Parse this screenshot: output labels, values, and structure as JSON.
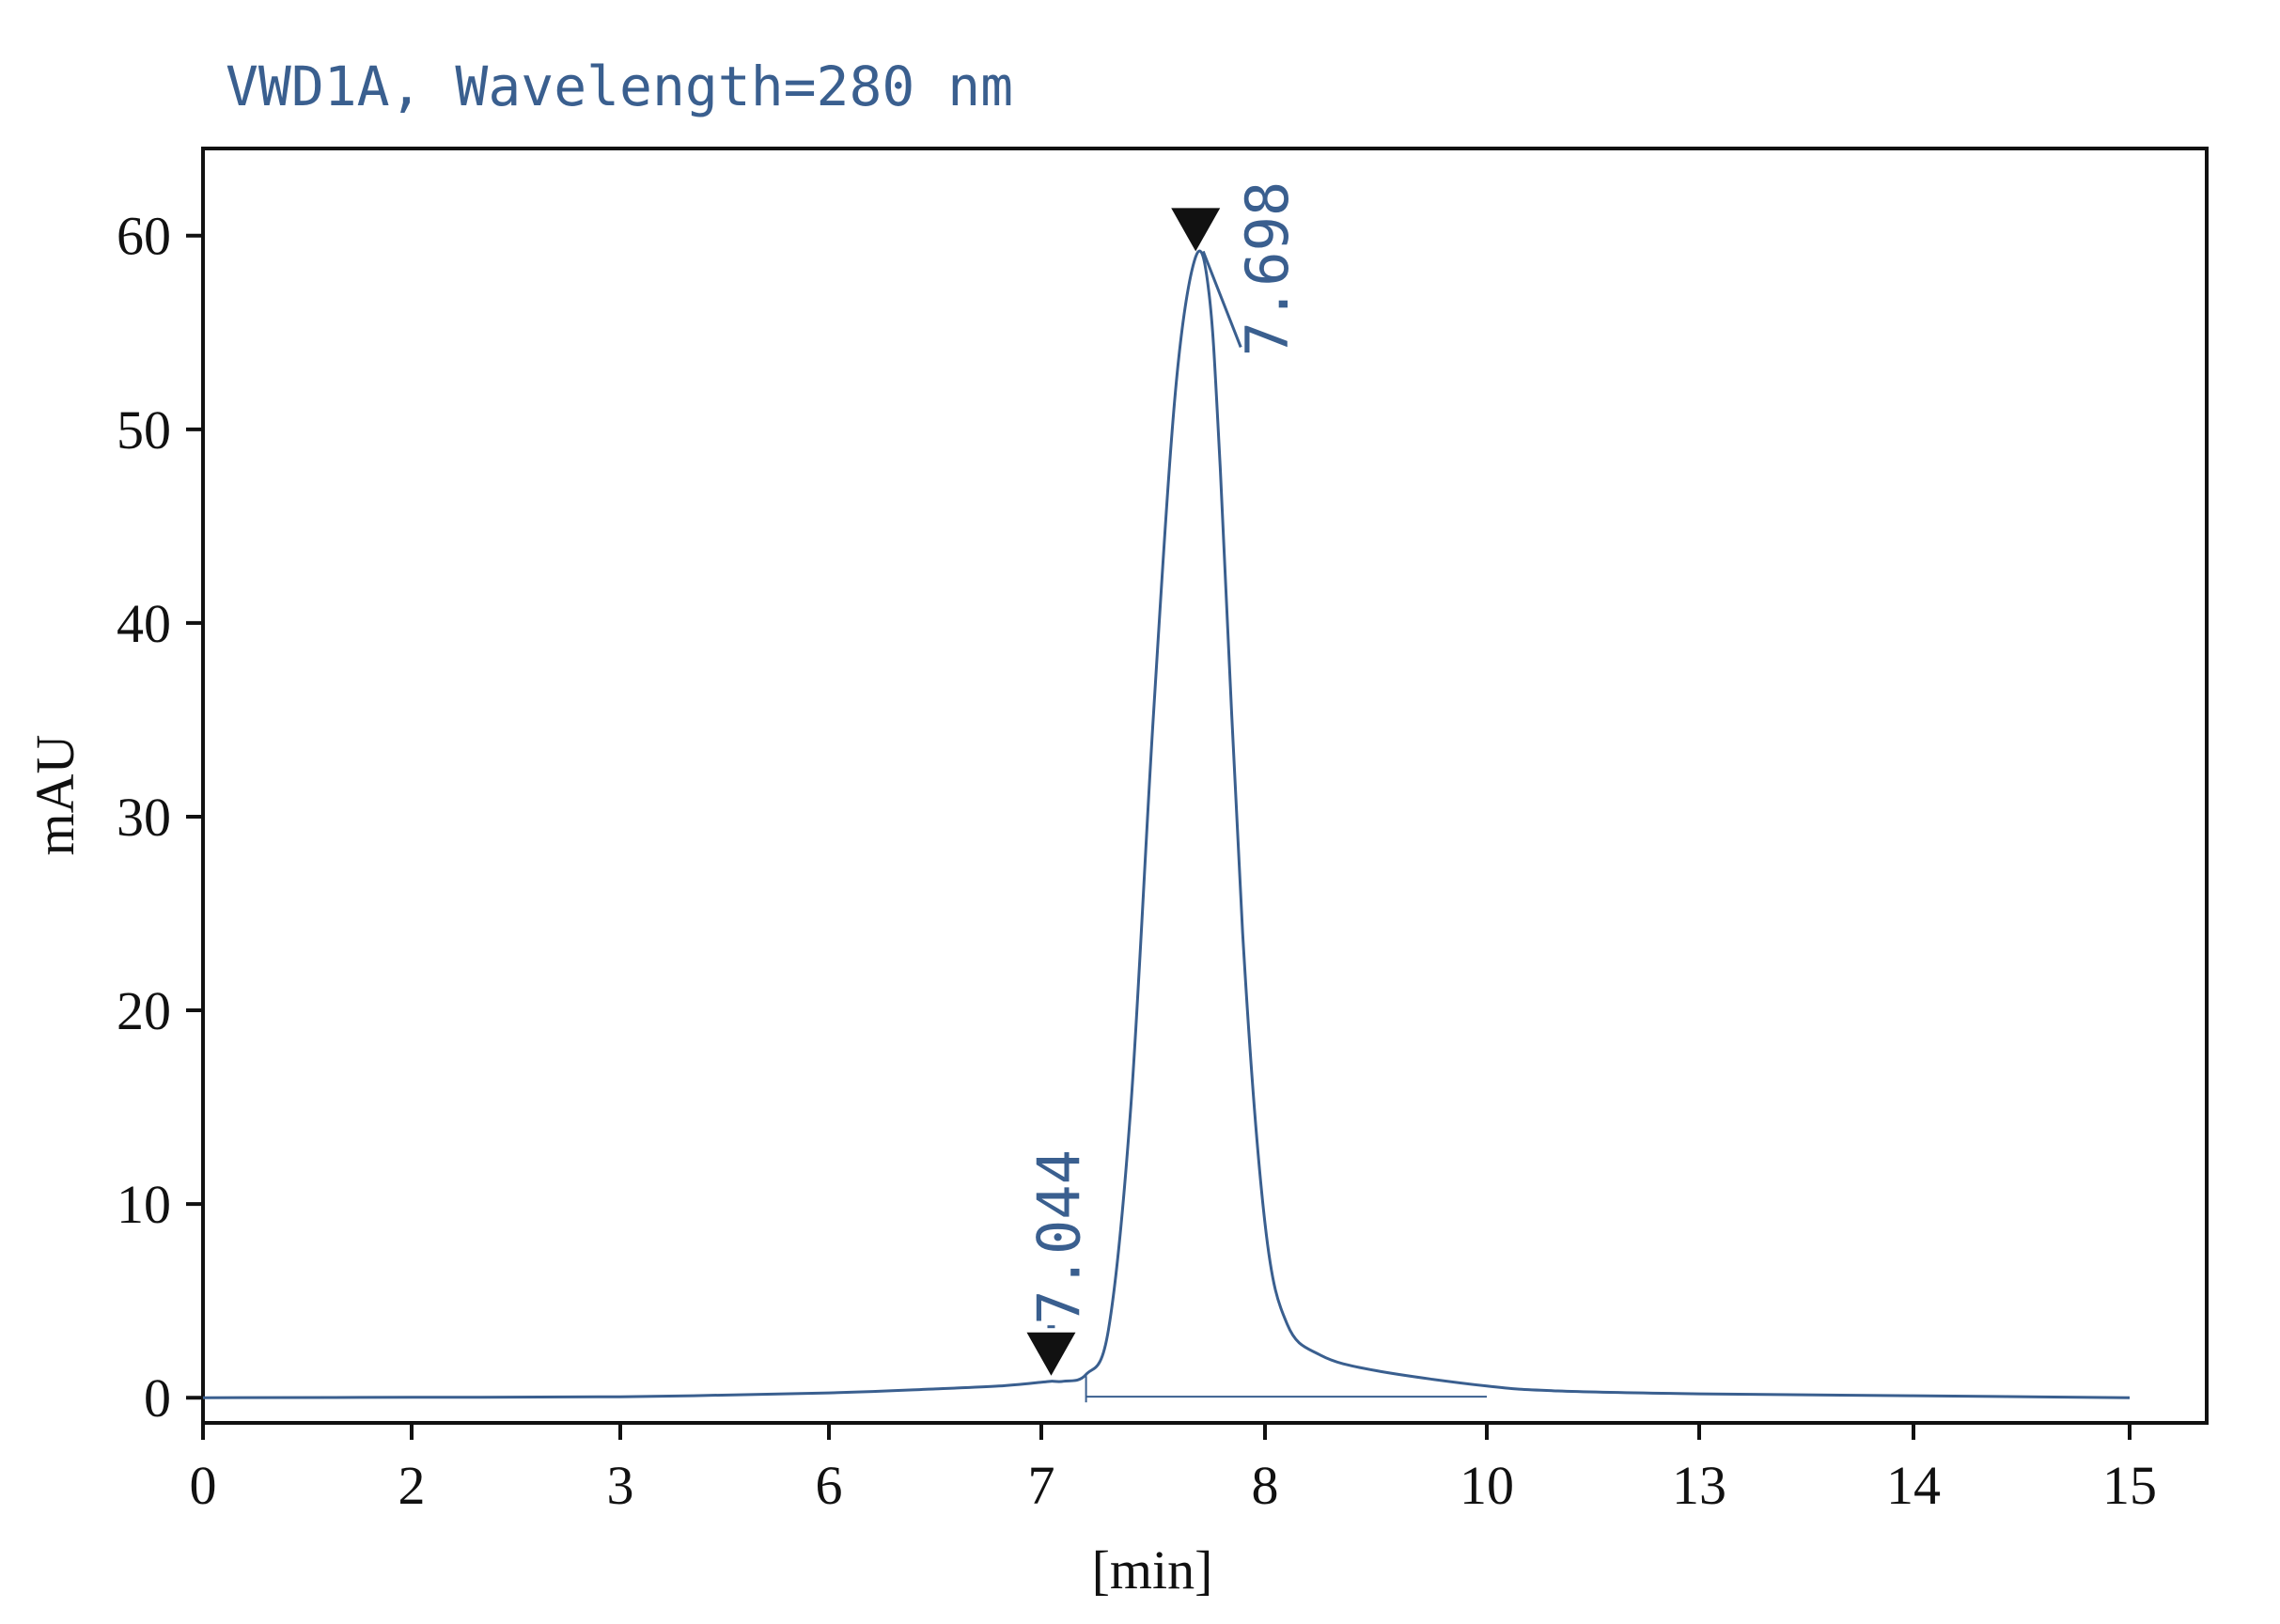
{
  "chart_data": {
    "type": "line",
    "title": "VWD1A, Wavelength=280 nm",
    "xlabel": "[min]",
    "ylabel": "mAU",
    "x_tick_labels": [
      "0",
      "2",
      "3",
      "6",
      "7",
      "8",
      "10",
      "13",
      "14",
      "15"
    ],
    "y_ticks": [
      0,
      10,
      20,
      30,
      40,
      50,
      60
    ],
    "ylim": [
      -1.3,
      64.5
    ],
    "grid": false,
    "legend": "none",
    "series": [
      {
        "points": [
          [
            0,
            0
          ],
          [
            2,
            0.02
          ],
          [
            3,
            0.05
          ],
          [
            6,
            0.25
          ],
          [
            6.5,
            0.45
          ],
          [
            6.8,
            0.6
          ],
          [
            7,
            0.8
          ],
          [
            7.044,
            0.85
          ],
          [
            7.1,
            0.85
          ],
          [
            7.2,
            1.2
          ],
          [
            7.3,
            3.5
          ],
          [
            7.4,
            15
          ],
          [
            7.5,
            35
          ],
          [
            7.6,
            52
          ],
          [
            7.69,
            58.9
          ],
          [
            7.75,
            57
          ],
          [
            7.8,
            48
          ],
          [
            7.9,
            24
          ],
          [
            8,
            9
          ],
          [
            8.2,
            3.8
          ],
          [
            8.5,
            2.2
          ],
          [
            9,
            1.4
          ],
          [
            10,
            0.6
          ],
          [
            11,
            0.35
          ],
          [
            13,
            0.2
          ],
          [
            14,
            0.1
          ],
          [
            15,
            0
          ]
        ]
      }
    ],
    "peaks": [
      {
        "label": "7.698",
        "x": 7.69,
        "y": 58.9
      },
      {
        "label": "7.044",
        "x": 7.044,
        "y": 0.85
      }
    ],
    "baseline": [
      [
        7.2,
        0.05
      ],
      [
        10,
        0.05
      ]
    ],
    "colors": {
      "trace": "#3a5f8f",
      "axes": "#111111"
    }
  }
}
